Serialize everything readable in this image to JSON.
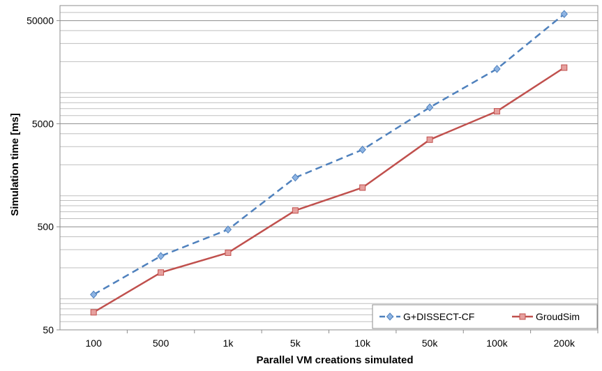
{
  "chart_data": {
    "type": "line",
    "title": "",
    "xlabel": "Parallel VM creations simulated",
    "ylabel": "Simulation time [ms]",
    "y_scale": "log",
    "ylim": [
      50,
      70000
    ],
    "y_tick_labels": [
      "50",
      "500",
      "5000",
      "50000"
    ],
    "y_tick_values": [
      50,
      500,
      5000,
      50000
    ],
    "grid": "horizontal major and minor (log)",
    "legend_position": "bottom-right",
    "categories": [
      "100",
      "500",
      "1k",
      "5k",
      "10k",
      "50k",
      "100k",
      "200k"
    ],
    "series": [
      {
        "name": "G+DISSECT-CF",
        "values": [
          110,
          260,
          470,
          1500,
          2800,
          7200,
          17000,
          58000
        ],
        "color": "#4F81BD",
        "line_style": "dashed",
        "marker": "diamond"
      },
      {
        "name": "GroudSim",
        "values": [
          74,
          180,
          280,
          720,
          1200,
          3500,
          6600,
          17500
        ],
        "color": "#C0504D",
        "line_style": "solid",
        "marker": "square"
      }
    ]
  }
}
